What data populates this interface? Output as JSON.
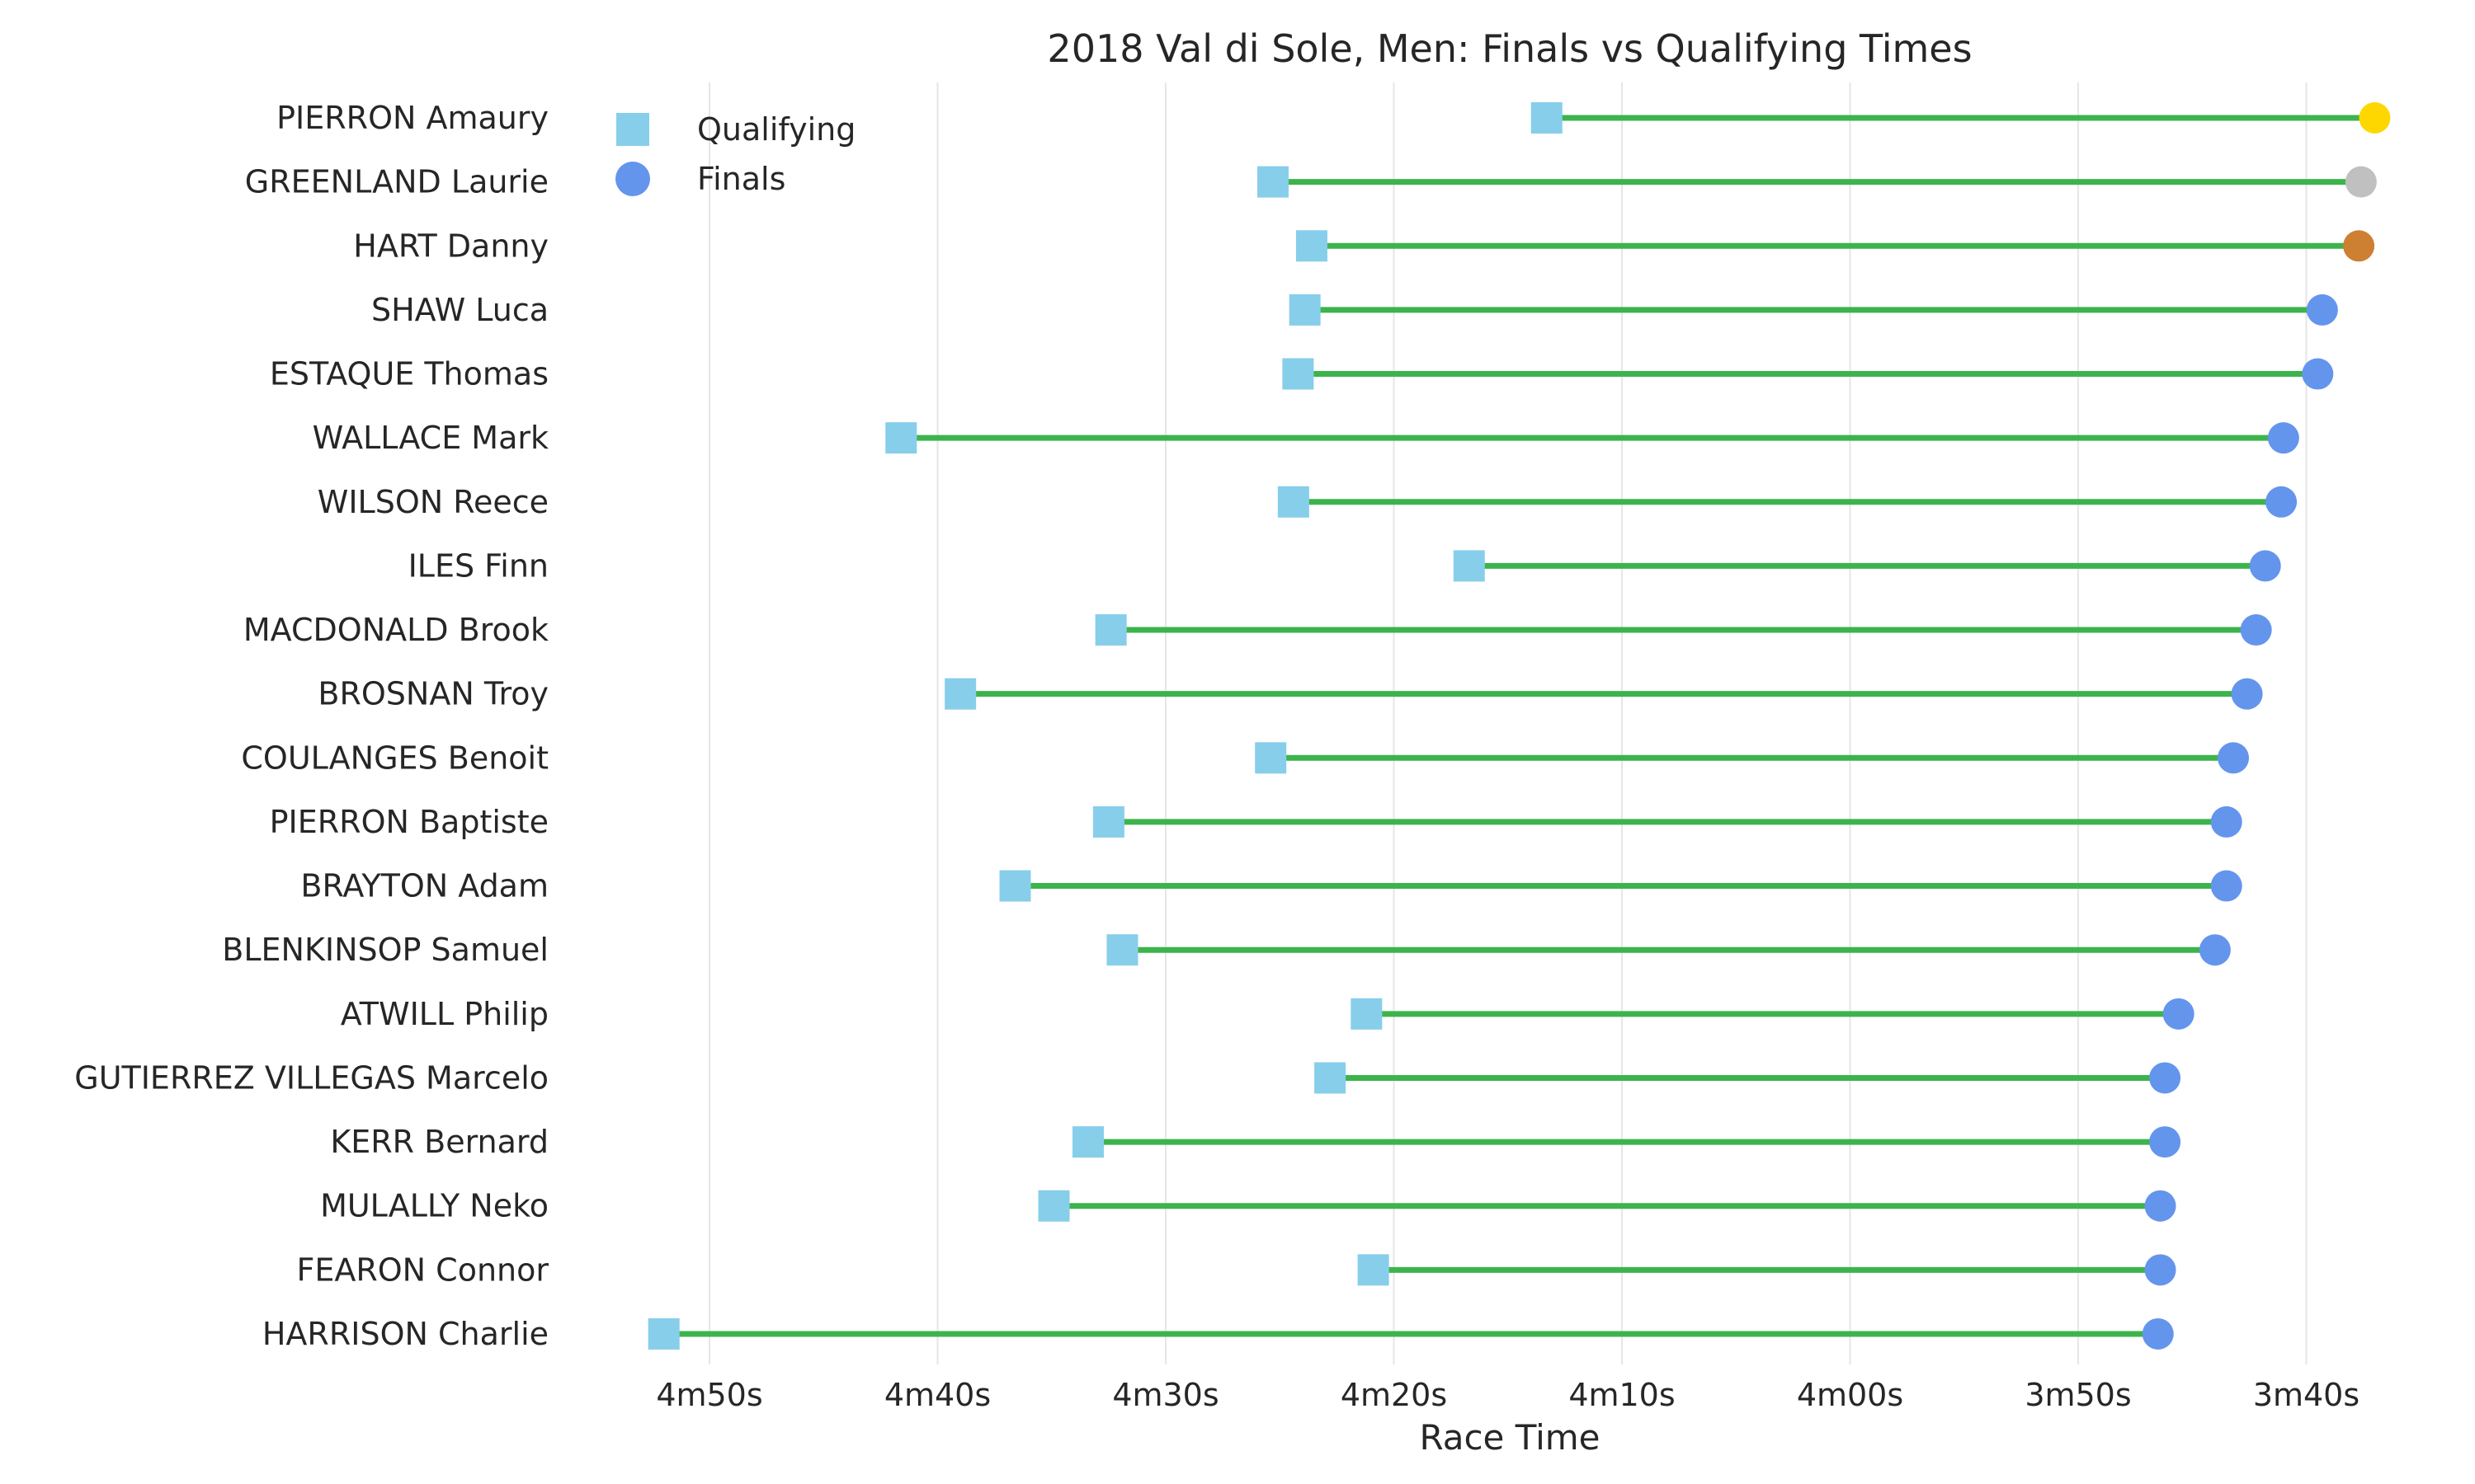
{
  "chart_data": {
    "type": "dumbbell",
    "title": "2018 Val di Sole, Men: Finals vs Qualifying Times",
    "xlabel": "Race Time",
    "ylabel": "",
    "x_axis": {
      "reversed": true,
      "unit": "seconds",
      "xlim": [
        294,
        216
      ],
      "ticks": [
        {
          "value": 290,
          "label": "4m50s"
        },
        {
          "value": 280,
          "label": "4m40s"
        },
        {
          "value": 270,
          "label": "4m30s"
        },
        {
          "value": 260,
          "label": "4m20s"
        },
        {
          "value": 250,
          "label": "4m10s"
        },
        {
          "value": 240,
          "label": "4m00s"
        },
        {
          "value": 230,
          "label": "3m50s"
        },
        {
          "value": 220,
          "label": "3m40s"
        }
      ]
    },
    "grid": "vertical",
    "legend": {
      "position": "top-left",
      "entries": [
        {
          "label": "Qualifying",
          "marker": "square",
          "color": "#87CEEB"
        },
        {
          "label": "Finals",
          "marker": "circle",
          "color": "#6495ED"
        }
      ]
    },
    "colors": {
      "qualifying": "#87CEEB",
      "finals": "#6495ED",
      "connector": "#3CB44B",
      "gold": "#FFD700",
      "silver": "#C0C0C0",
      "bronze": "#CD7F32",
      "grid": "#E6E6E6"
    },
    "riders": [
      {
        "name": "PIERRON Amaury",
        "qualifying": 253.3,
        "finals": 217.0,
        "medal": "gold"
      },
      {
        "name": "GREENLAND Laurie",
        "qualifying": 265.3,
        "finals": 217.6,
        "medal": "silver"
      },
      {
        "name": "HART Danny",
        "qualifying": 263.6,
        "finals": 217.7,
        "medal": "bronze"
      },
      {
        "name": "SHAW Luca",
        "qualifying": 263.9,
        "finals": 219.3,
        "medal": ""
      },
      {
        "name": "ESTAQUE Thomas",
        "qualifying": 264.2,
        "finals": 219.5,
        "medal": ""
      },
      {
        "name": "WALLACE Mark",
        "qualifying": 281.6,
        "finals": 221.0,
        "medal": ""
      },
      {
        "name": "WILSON Reece",
        "qualifying": 264.4,
        "finals": 221.1,
        "medal": ""
      },
      {
        "name": "ILES Finn",
        "qualifying": 256.7,
        "finals": 221.8,
        "medal": ""
      },
      {
        "name": "MACDONALD Brook",
        "qualifying": 272.4,
        "finals": 222.2,
        "medal": ""
      },
      {
        "name": "BROSNAN Troy",
        "qualifying": 279.0,
        "finals": 222.6,
        "medal": ""
      },
      {
        "name": "COULANGES Benoit",
        "qualifying": 265.4,
        "finals": 223.2,
        "medal": ""
      },
      {
        "name": "PIERRON Baptiste",
        "qualifying": 272.5,
        "finals": 223.5,
        "medal": ""
      },
      {
        "name": "BRAYTON Adam",
        "qualifying": 276.6,
        "finals": 223.5,
        "medal": ""
      },
      {
        "name": "BLENKINSOP Samuel",
        "qualifying": 271.9,
        "finals": 224.0,
        "medal": ""
      },
      {
        "name": "ATWILL Philip",
        "qualifying": 261.2,
        "finals": 225.6,
        "medal": ""
      },
      {
        "name": "GUTIERREZ VILLEGAS Marcelo",
        "qualifying": 262.8,
        "finals": 226.2,
        "medal": ""
      },
      {
        "name": "KERR Bernard",
        "qualifying": 273.4,
        "finals": 226.2,
        "medal": ""
      },
      {
        "name": "MULALLY Neko",
        "qualifying": 274.9,
        "finals": 226.4,
        "medal": ""
      },
      {
        "name": "FEARON Connor",
        "qualifying": 260.9,
        "finals": 226.4,
        "medal": ""
      },
      {
        "name": "HARRISON Charlie",
        "qualifying": 292.0,
        "finals": 226.5,
        "medal": ""
      }
    ]
  }
}
